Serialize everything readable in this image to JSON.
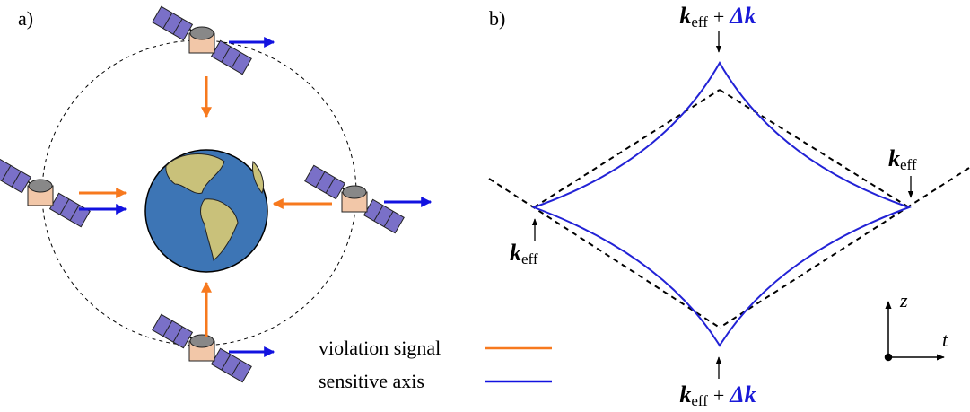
{
  "panel_a": {
    "label": "a)",
    "legend": [
      {
        "name": "violation signal",
        "color": "#f7791e"
      },
      {
        "name": "sensitive axis",
        "color": "#1212e0"
      }
    ]
  },
  "panel_b": {
    "label": "b)",
    "curve_color": "#2222d6",
    "labels": {
      "top": {
        "k": "k",
        "sub": "eff",
        "plus": "+",
        "delta": "Δk"
      },
      "bottom": {
        "k": "k",
        "sub": "eff",
        "plus": "+",
        "delta": "Δk"
      },
      "left": {
        "k": "k",
        "sub": "eff"
      },
      "right": {
        "k": "k",
        "sub": "eff"
      }
    },
    "axes": {
      "z": "z",
      "t": "t"
    }
  }
}
